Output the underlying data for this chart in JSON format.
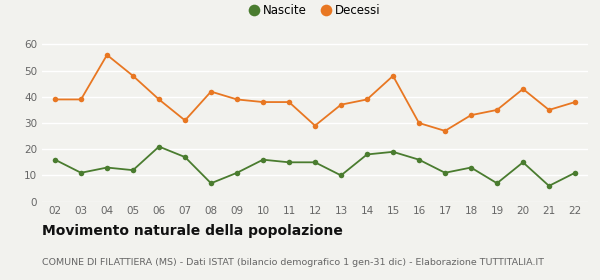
{
  "years": [
    "02",
    "03",
    "04",
    "05",
    "06",
    "07",
    "08",
    "09",
    "10",
    "11",
    "12",
    "13",
    "14",
    "15",
    "16",
    "17",
    "18",
    "19",
    "20",
    "21",
    "22"
  ],
  "nascite": [
    16,
    11,
    13,
    12,
    21,
    17,
    7,
    11,
    16,
    15,
    15,
    10,
    18,
    19,
    16,
    11,
    13,
    7,
    15,
    6,
    11
  ],
  "decessi": [
    39,
    39,
    56,
    48,
    39,
    31,
    42,
    39,
    38,
    38,
    29,
    37,
    39,
    48,
    30,
    27,
    33,
    35,
    43,
    35,
    38
  ],
  "nascite_color": "#4a7c2f",
  "decessi_color": "#e87722",
  "background_color": "#f2f2ee",
  "grid_color": "#ffffff",
  "ylim": [
    0,
    62
  ],
  "yticks": [
    0,
    10,
    20,
    30,
    40,
    50,
    60
  ],
  "title": "Movimento naturale della popolazione",
  "subtitle": "COMUNE DI FILATTIERA (MS) - Dati ISTAT (bilancio demografico 1 gen-31 dic) - Elaborazione TUTTITALIA.IT",
  "legend_nascite": "Nascite",
  "legend_decessi": "Decessi",
  "marker_size": 4,
  "line_width": 1.3,
  "title_fontsize": 10,
  "subtitle_fontsize": 6.8,
  "tick_fontsize": 7.5,
  "legend_fontsize": 8.5,
  "tick_color": "#666666",
  "title_color": "#111111",
  "subtitle_color": "#666666"
}
